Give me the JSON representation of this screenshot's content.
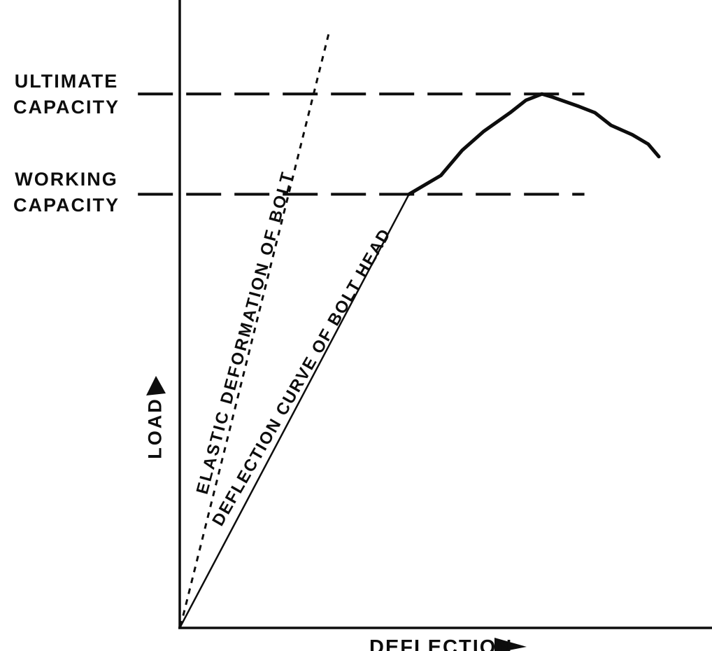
{
  "figure": {
    "description": "Load versus deflection diagram for a bolt, black line art on white background",
    "ink_color": "#0d0d0d",
    "background_color": "#ffffff"
  },
  "labels": {
    "ultimate_capacity": "ULTIMATE\nCAPACITY",
    "working_capacity": "WORKING\nCAPACITY",
    "elastic_line": "ELASTIC DEFORMATION OF BOLT",
    "deflection_curve": "DEFLECTION CURVE OF BOLT HEAD",
    "y_axis": "LOAD",
    "x_axis": "DEFLECTION"
  },
  "icons": {
    "load_axis_arrow": "up-filled-triangle",
    "deflection_axis_arrow": "right-filled-triangle"
  },
  "chart_data": {
    "type": "line",
    "title": "",
    "xlabel": "DEFLECTION",
    "ylabel": "LOAD",
    "x_range": [
      0,
      100
    ],
    "y_range": [
      0,
      100
    ],
    "axes_numeric_ticks": false,
    "grid": false,
    "legend_position": "labels-along-lines",
    "reference_lines": [
      {
        "label": "ULTIMATE CAPACITY",
        "y": 85,
        "x_start": -8,
        "x_end": 76,
        "style": "dashed"
      },
      {
        "label": "WORKING CAPACITY",
        "y": 69,
        "x_start": -8,
        "x_end": 76,
        "style": "dashed"
      }
    ],
    "series": [
      {
        "name": "ELASTIC DEFORMATION OF BOLT",
        "style": "dotted",
        "points": [
          [
            0,
            0
          ],
          [
            28,
            95
          ]
        ]
      },
      {
        "name": "DEFLECTION CURVE OF BOLT HEAD",
        "style": "solid",
        "linear_until_index": 1,
        "points": [
          [
            0,
            0
          ],
          [
            43,
            69
          ],
          [
            49,
            72
          ],
          [
            53,
            76
          ],
          [
            57,
            79
          ],
          [
            62,
            82
          ],
          [
            65,
            84
          ],
          [
            68,
            85
          ],
          [
            70,
            84.5
          ],
          [
            75,
            83
          ],
          [
            78,
            82
          ],
          [
            81,
            80
          ],
          [
            85,
            78.5
          ],
          [
            88,
            77
          ],
          [
            90,
            75
          ]
        ]
      }
    ]
  }
}
